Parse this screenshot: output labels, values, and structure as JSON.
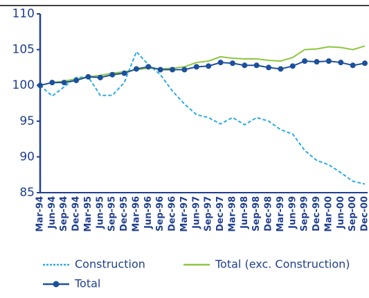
{
  "chart_data": {
    "type": "line",
    "categories": [
      "Mar-94",
      "Jun-94",
      "Sep-94",
      "Dec-94",
      "Mar-95",
      "Jun-95",
      "Sep-95",
      "Dec-95",
      "Mar-96",
      "Jun-96",
      "Sep-96",
      "Dec-96",
      "Mar-97",
      "Jun-97",
      "Sep-97",
      "Dec-97",
      "Mar-98",
      "Jun-98",
      "Sep-98",
      "Dec-98",
      "Mar-99",
      "Jun-99",
      "Sep-99",
      "Dec-99",
      "Mar-00",
      "Jun-00",
      "Sep-00",
      "Dec-00"
    ],
    "series": [
      {
        "name": "Construction",
        "color": "#29abe2",
        "dashed": true,
        "values": [
          100,
          98.5,
          99.8,
          101.1,
          101.2,
          98.6,
          98.6,
          100.4,
          104.7,
          102.9,
          101.5,
          99.2,
          97.4,
          95.9,
          95.5,
          94.6,
          95.5,
          94.5,
          95.5,
          95.0,
          93.8,
          93.2,
          90.9,
          89.5,
          88.9,
          87.8,
          86.6,
          86.2
        ]
      },
      {
        "name": "Total (exc. Construction)",
        "color": "#8dc63f",
        "values": [
          100,
          100.4,
          100.6,
          100.9,
          101.2,
          101.4,
          101.7,
          101.9,
          102.2,
          102.4,
          102.3,
          102.4,
          102.6,
          103.2,
          103.4,
          104.0,
          103.8,
          103.7,
          103.7,
          103.5,
          103.4,
          103.9,
          105.0,
          105.1,
          105.4,
          105.3,
          105.0,
          105.5
        ]
      },
      {
        "name": "Total",
        "color": "#1c4f9c",
        "markers": true,
        "values": [
          100,
          100.4,
          100.4,
          100.7,
          101.2,
          101.1,
          101.5,
          101.7,
          102.3,
          102.6,
          102.2,
          102.2,
          102.2,
          102.6,
          102.7,
          103.2,
          103.1,
          102.8,
          102.8,
          102.5,
          102.3,
          102.7,
          103.4,
          103.3,
          103.4,
          103.2,
          102.8,
          103.1
        ]
      }
    ],
    "ylim": [
      85,
      110
    ],
    "yticks": [
      85,
      90,
      95,
      100,
      105,
      110
    ]
  }
}
